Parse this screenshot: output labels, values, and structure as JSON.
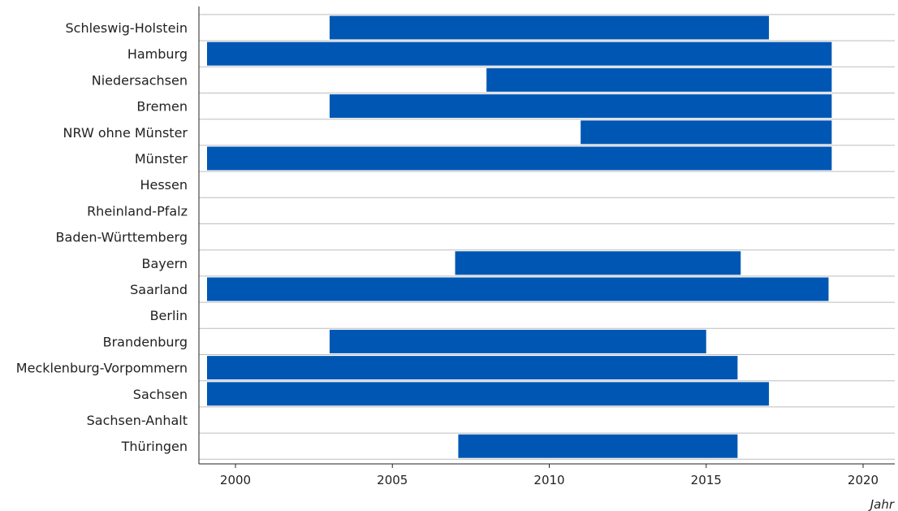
{
  "chart_data": {
    "type": "bar",
    "orientation": "horizontal-range",
    "title": "",
    "xlabel": "Jahr",
    "ylabel": "",
    "xlim": [
      1999,
      2021
    ],
    "xticks": [
      2000,
      2005,
      2010,
      2015,
      2020
    ],
    "grid": true,
    "bar_color": "#0057B3",
    "categories": [
      "Schleswig-Holstein",
      "Hamburg",
      "Niedersachsen",
      "Bremen",
      "NRW ohne Münster",
      "Münster",
      "Hessen",
      "Rheinland-Pfalz",
      "Baden-Württemberg",
      "Bayern",
      "Saarland",
      "Berlin",
      "Brandenburg",
      "Mecklenburg-Vorpommern",
      "Sachsen",
      "Sachsen-Anhalt",
      "Thüringen"
    ],
    "ranges": [
      [
        2003,
        2017
      ],
      [
        1999,
        2019
      ],
      [
        2008,
        2019
      ],
      [
        2003,
        2019
      ],
      [
        2011,
        2019
      ],
      [
        1999,
        2019
      ],
      null,
      null,
      null,
      [
        2007,
        2016.1
      ],
      [
        1999,
        2018.9
      ],
      null,
      [
        2003,
        2015
      ],
      [
        1999,
        2016
      ],
      [
        1999,
        2017
      ],
      null,
      [
        2007.1,
        2016
      ]
    ]
  }
}
